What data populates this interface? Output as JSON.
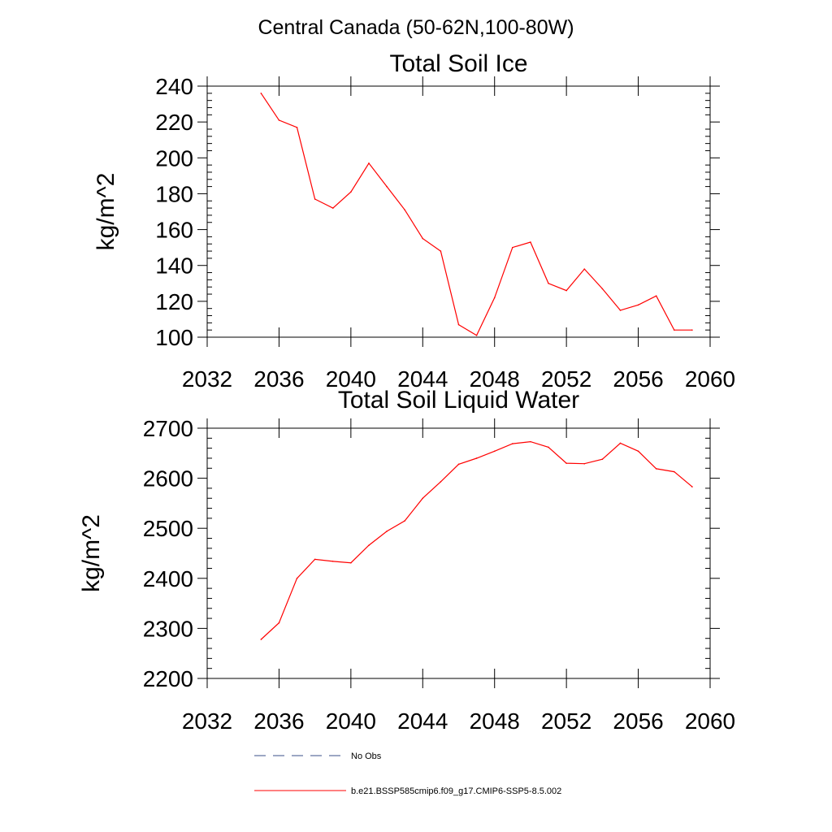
{
  "figure": {
    "suptitle": "Central Canada (50-62N,100-80W)"
  },
  "chart_data": [
    {
      "type": "line",
      "title": "Total Soil Ice",
      "xlabel": "",
      "ylabel": "kg/m^2",
      "xlim": [
        2032,
        2060
      ],
      "ylim": [
        100,
        240
      ],
      "xticks": [
        2032,
        2036,
        2040,
        2044,
        2048,
        2052,
        2056,
        2060
      ],
      "yticks": [
        100,
        120,
        140,
        160,
        180,
        200,
        220,
        240
      ],
      "color": "#ff0000",
      "x": [
        2035,
        2036,
        2037,
        2038,
        2039,
        2040,
        2041,
        2042,
        2043,
        2044,
        2045,
        2046,
        2047,
        2048,
        2049,
        2050,
        2051,
        2052,
        2053,
        2054,
        2055,
        2056,
        2057,
        2058,
        2059
      ],
      "y": [
        236,
        221,
        217,
        177,
        172,
        181,
        197,
        184,
        171,
        155,
        148,
        107,
        101,
        122,
        150,
        153,
        130,
        126,
        138,
        127,
        115,
        118,
        123,
        104,
        104
      ]
    },
    {
      "type": "line",
      "title": "Total Soil Liquid Water",
      "xlabel": "",
      "ylabel": "kg/m^2",
      "xlim": [
        2032,
        2060
      ],
      "ylim": [
        2200,
        2700
      ],
      "xticks": [
        2032,
        2036,
        2040,
        2044,
        2048,
        2052,
        2056,
        2060
      ],
      "yticks": [
        2200,
        2300,
        2400,
        2500,
        2600,
        2700
      ],
      "color": "#ff0000",
      "x": [
        2035,
        2036,
        2037,
        2038,
        2039,
        2040,
        2041,
        2042,
        2043,
        2044,
        2045,
        2046,
        2047,
        2048,
        2049,
        2050,
        2051,
        2052,
        2053,
        2054,
        2055,
        2056,
        2057,
        2058,
        2059
      ],
      "y": [
        2278,
        2311,
        2400,
        2438,
        2434,
        2431,
        2466,
        2494,
        2515,
        2560,
        2593,
        2628,
        2640,
        2654,
        2669,
        2673,
        2662,
        2630,
        2629,
        2638,
        2670,
        2654,
        2619,
        2613,
        2583
      ]
    }
  ],
  "legend": [
    {
      "label": "No Obs",
      "style": "dashed",
      "color": "#3a4f8a"
    },
    {
      "label": "b.e21.BSSP585cmip6.f09_g17.CMIP6-SSP5-8.5.002",
      "style": "solid",
      "color": "#ff0000"
    }
  ]
}
